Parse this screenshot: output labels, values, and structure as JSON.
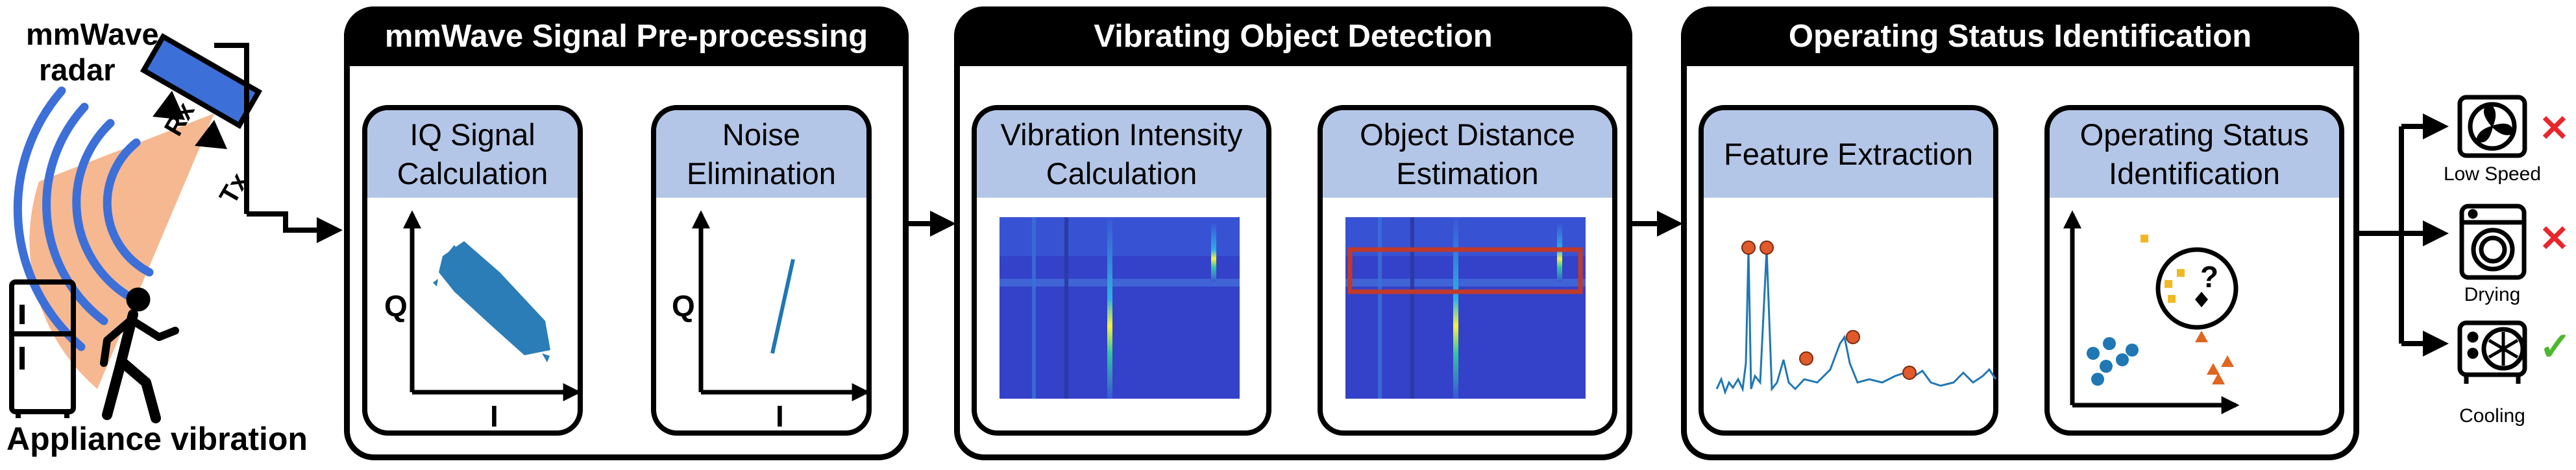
{
  "radar": {
    "line1": "mmWave",
    "line2": "radar",
    "rx": "Rx",
    "tx": "Tx"
  },
  "appliance_label": "Appliance vibration",
  "stages": [
    {
      "title": "mmWave Signal Pre-processing",
      "cards": [
        {
          "line1": "IQ Signal",
          "line2": "Calculation",
          "y_axis": "Q",
          "x_axis": "I"
        },
        {
          "line1": "Noise",
          "line2": "Elimination",
          "y_axis": "Q",
          "x_axis": "I"
        }
      ]
    },
    {
      "title": "Vibrating Object Detection",
      "cards": [
        {
          "line1": "Vibration Intensity",
          "line2": "Calculation"
        },
        {
          "line1": "Object Distance",
          "line2": "Estimation"
        }
      ]
    },
    {
      "title": "Operating Status Identification",
      "cards": [
        {
          "line1": "Feature Extraction",
          "line2": ""
        },
        {
          "line1": "Operating Status",
          "line2": "Identification",
          "unknown_mark": "?"
        }
      ]
    }
  ],
  "outputs": [
    {
      "label": "Low Speed",
      "icon": "fan-icon",
      "result": "✕",
      "result_color": "#e8262b"
    },
    {
      "label": "Drying",
      "icon": "washer-icon",
      "result": "✕",
      "result_color": "#e8262b"
    },
    {
      "label": "Cooling",
      "icon": "ac-unit-icon",
      "result": "✓",
      "result_color": "#4cb82e"
    }
  ],
  "colors": {
    "card_header": "#b4c6e7",
    "signal": "#1f77b4",
    "peak_marker": "#e05a2b",
    "highlight_box": "#c0392b",
    "cluster_blue": "#1f77b4",
    "cluster_yellow": "#f2b824",
    "cluster_orange": "#e0651f"
  }
}
